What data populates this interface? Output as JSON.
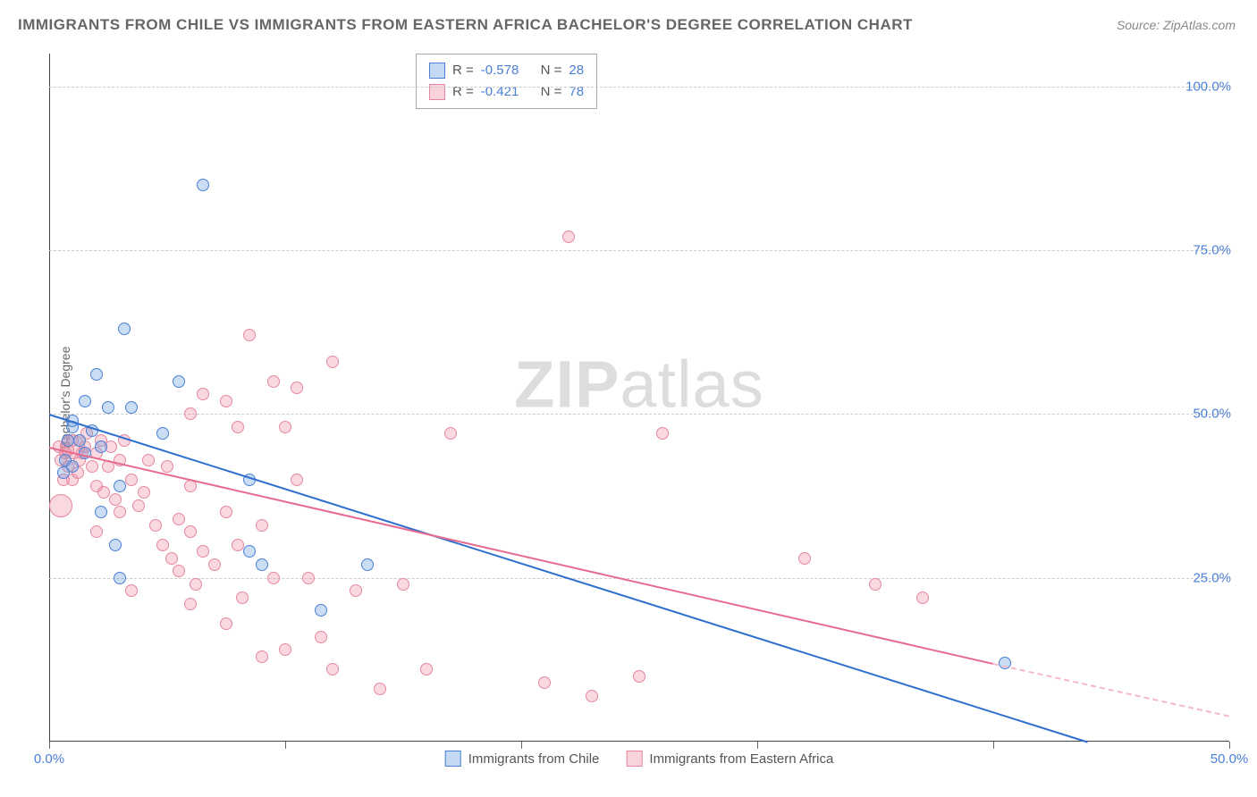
{
  "title": "IMMIGRANTS FROM CHILE VS IMMIGRANTS FROM EASTERN AFRICA BACHELOR'S DEGREE CORRELATION CHART",
  "source": "Source: ZipAtlas.com",
  "watermark_a": "ZIP",
  "watermark_b": "atlas",
  "chart": {
    "type": "scatter",
    "y_label": "Bachelor's Degree",
    "xlim": [
      0,
      50
    ],
    "ylim": [
      0,
      105
    ],
    "x_ticks": [
      0,
      10,
      20,
      30,
      40,
      50
    ],
    "x_tick_labels": [
      "0.0%",
      "",
      "",
      "",
      "",
      "50.0%"
    ],
    "y_ticks": [
      25,
      50,
      75,
      100
    ],
    "y_tick_labels": [
      "25.0%",
      "50.0%",
      "75.0%",
      "100.0%"
    ],
    "grid_color": "#cccccc",
    "axis_color": "#444444",
    "background_color": "#ffffff",
    "series": [
      {
        "name": "Immigrants from Chile",
        "color_fill": "rgba(106,159,222,0.35)",
        "color_stroke": "#4a7fd6",
        "r_value": "-0.578",
        "n_value": "28",
        "marker_size": 14,
        "trend": {
          "x0": 0,
          "y0": 50,
          "x1": 44,
          "y1": 0
        },
        "points": [
          {
            "x": 6.5,
            "y": 85,
            "s": 14
          },
          {
            "x": 3.2,
            "y": 63,
            "s": 14
          },
          {
            "x": 2.0,
            "y": 56,
            "s": 14
          },
          {
            "x": 5.5,
            "y": 55,
            "s": 14
          },
          {
            "x": 1.5,
            "y": 52,
            "s": 14
          },
          {
            "x": 2.5,
            "y": 51,
            "s": 14
          },
          {
            "x": 3.5,
            "y": 51,
            "s": 14
          },
          {
            "x": 1.0,
            "y": 49,
            "s": 14
          },
          {
            "x": 1.0,
            "y": 48,
            "s": 14
          },
          {
            "x": 1.8,
            "y": 47.5,
            "s": 14
          },
          {
            "x": 4.8,
            "y": 47,
            "s": 14
          },
          {
            "x": 0.8,
            "y": 46,
            "s": 14
          },
          {
            "x": 1.3,
            "y": 46,
            "s": 14
          },
          {
            "x": 2.2,
            "y": 45,
            "s": 14
          },
          {
            "x": 1.5,
            "y": 44,
            "s": 14
          },
          {
            "x": 0.7,
            "y": 43,
            "s": 14
          },
          {
            "x": 3.0,
            "y": 39,
            "s": 14
          },
          {
            "x": 8.5,
            "y": 40,
            "s": 14
          },
          {
            "x": 2.2,
            "y": 35,
            "s": 14
          },
          {
            "x": 2.8,
            "y": 30,
            "s": 14
          },
          {
            "x": 3.0,
            "y": 25,
            "s": 14
          },
          {
            "x": 8.5,
            "y": 29,
            "s": 14
          },
          {
            "x": 9.0,
            "y": 27,
            "s": 14
          },
          {
            "x": 13.5,
            "y": 27,
            "s": 14
          },
          {
            "x": 11.5,
            "y": 20,
            "s": 14
          },
          {
            "x": 1.0,
            "y": 42,
            "s": 14
          },
          {
            "x": 0.6,
            "y": 41,
            "s": 14
          },
          {
            "x": 40.5,
            "y": 12,
            "s": 14
          }
        ]
      },
      {
        "name": "Immigrants from Eastern Africa",
        "color_fill": "rgba(238,144,167,0.35)",
        "color_stroke": "#e6879f",
        "r_value": "-0.421",
        "n_value": "78",
        "marker_size": 14,
        "trend": {
          "x0": 0,
          "y0": 45,
          "x1": 40,
          "y1": 12,
          "x2": 50,
          "y2": 4
        },
        "points": [
          {
            "x": 22,
            "y": 77,
            "s": 14
          },
          {
            "x": 8.5,
            "y": 62,
            "s": 14
          },
          {
            "x": 12,
            "y": 58,
            "s": 14
          },
          {
            "x": 9.5,
            "y": 55,
            "s": 14
          },
          {
            "x": 10.5,
            "y": 54,
            "s": 14
          },
          {
            "x": 6.5,
            "y": 53,
            "s": 14
          },
          {
            "x": 7.5,
            "y": 52,
            "s": 14
          },
          {
            "x": 6.0,
            "y": 50,
            "s": 14
          },
          {
            "x": 8.0,
            "y": 48,
            "s": 14
          },
          {
            "x": 10,
            "y": 48,
            "s": 14
          },
          {
            "x": 17,
            "y": 47,
            "s": 14
          },
          {
            "x": 26,
            "y": 47,
            "s": 14
          },
          {
            "x": 1.0,
            "y": 45,
            "s": 28
          },
          {
            "x": 1.5,
            "y": 45,
            "s": 14
          },
          {
            "x": 2.0,
            "y": 44,
            "s": 14
          },
          {
            "x": 0.5,
            "y": 43,
            "s": 14
          },
          {
            "x": 3.0,
            "y": 43,
            "s": 14
          },
          {
            "x": 4.2,
            "y": 43,
            "s": 14
          },
          {
            "x": 0.8,
            "y": 42,
            "s": 14
          },
          {
            "x": 2.5,
            "y": 42,
            "s": 14
          },
          {
            "x": 5.0,
            "y": 42,
            "s": 14
          },
          {
            "x": 1.0,
            "y": 40,
            "s": 14
          },
          {
            "x": 3.5,
            "y": 40,
            "s": 14
          },
          {
            "x": 6.0,
            "y": 39,
            "s": 14
          },
          {
            "x": 4.0,
            "y": 38,
            "s": 14
          },
          {
            "x": 2.8,
            "y": 37,
            "s": 14
          },
          {
            "x": 0.5,
            "y": 36,
            "s": 26
          },
          {
            "x": 3.0,
            "y": 35,
            "s": 14
          },
          {
            "x": 7.5,
            "y": 35,
            "s": 14
          },
          {
            "x": 5.5,
            "y": 34,
            "s": 14
          },
          {
            "x": 4.5,
            "y": 33,
            "s": 14
          },
          {
            "x": 9.0,
            "y": 33,
            "s": 14
          },
          {
            "x": 2.0,
            "y": 32,
            "s": 14
          },
          {
            "x": 6.0,
            "y": 32,
            "s": 14
          },
          {
            "x": 8.0,
            "y": 30,
            "s": 14
          },
          {
            "x": 6.5,
            "y": 29,
            "s": 14
          },
          {
            "x": 7.0,
            "y": 27,
            "s": 14
          },
          {
            "x": 5.5,
            "y": 26,
            "s": 14
          },
          {
            "x": 9.5,
            "y": 25,
            "s": 14
          },
          {
            "x": 11,
            "y": 25,
            "s": 14
          },
          {
            "x": 3.5,
            "y": 23,
            "s": 14
          },
          {
            "x": 6.0,
            "y": 21,
            "s": 14
          },
          {
            "x": 13,
            "y": 23,
            "s": 14
          },
          {
            "x": 15,
            "y": 24,
            "s": 14
          },
          {
            "x": 7.5,
            "y": 18,
            "s": 14
          },
          {
            "x": 9.0,
            "y": 13,
            "s": 14
          },
          {
            "x": 10,
            "y": 14,
            "s": 14
          },
          {
            "x": 14,
            "y": 8,
            "s": 14
          },
          {
            "x": 16,
            "y": 11,
            "s": 14
          },
          {
            "x": 12,
            "y": 11,
            "s": 14
          },
          {
            "x": 21,
            "y": 9,
            "s": 14
          },
          {
            "x": 23,
            "y": 7,
            "s": 14
          },
          {
            "x": 25,
            "y": 10,
            "s": 14
          },
          {
            "x": 32,
            "y": 28,
            "s": 14
          },
          {
            "x": 35,
            "y": 24,
            "s": 14
          },
          {
            "x": 37,
            "y": 22,
            "s": 14
          },
          {
            "x": 10.5,
            "y": 40,
            "s": 14
          },
          {
            "x": 1.2,
            "y": 41,
            "s": 14
          },
          {
            "x": 2.0,
            "y": 39,
            "s": 14
          },
          {
            "x": 0.7,
            "y": 44,
            "s": 14
          },
          {
            "x": 1.3,
            "y": 43,
            "s": 14
          },
          {
            "x": 1.8,
            "y": 42,
            "s": 14
          },
          {
            "x": 0.6,
            "y": 40,
            "s": 14
          },
          {
            "x": 2.3,
            "y": 38,
            "s": 14
          },
          {
            "x": 3.8,
            "y": 36,
            "s": 14
          },
          {
            "x": 4.8,
            "y": 30,
            "s": 14
          },
          {
            "x": 5.2,
            "y": 28,
            "s": 14
          },
          {
            "x": 6.2,
            "y": 24,
            "s": 14
          },
          {
            "x": 8.2,
            "y": 22,
            "s": 14
          },
          {
            "x": 11.5,
            "y": 16,
            "s": 14
          },
          {
            "x": 1.0,
            "y": 46,
            "s": 14
          },
          {
            "x": 1.6,
            "y": 47,
            "s": 14
          },
          {
            "x": 2.2,
            "y": 46,
            "s": 14
          },
          {
            "x": 0.4,
            "y": 45,
            "s": 14
          },
          {
            "x": 0.8,
            "y": 44.5,
            "s": 14
          },
          {
            "x": 1.4,
            "y": 44,
            "s": 14
          },
          {
            "x": 2.6,
            "y": 45,
            "s": 14
          },
          {
            "x": 3.2,
            "y": 46,
            "s": 14
          }
        ]
      }
    ],
    "legend_top": {
      "label_r": "R =",
      "label_n": "N ="
    },
    "legend_bottom": [
      "Immigrants from Chile",
      "Immigrants from Eastern Africa"
    ]
  }
}
